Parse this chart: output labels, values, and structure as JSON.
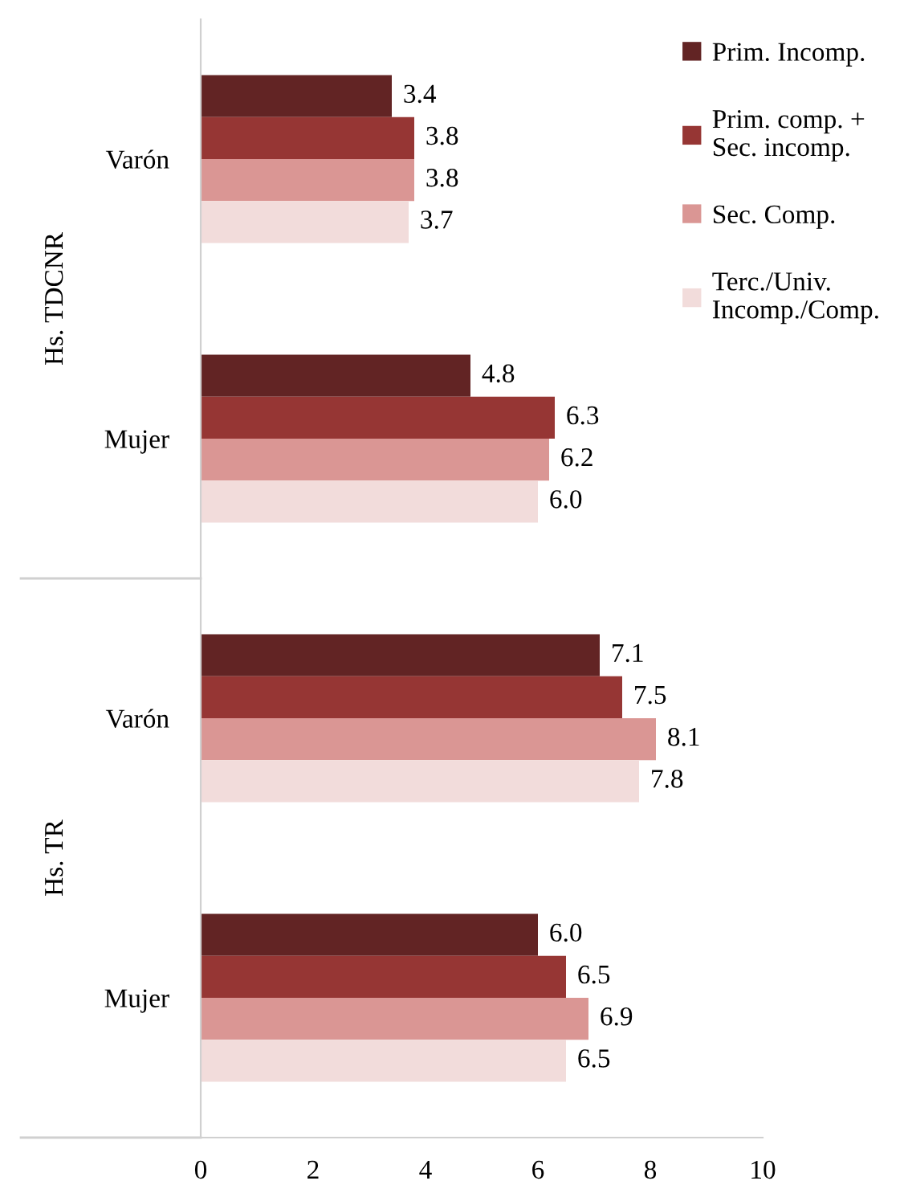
{
  "chart_data": {
    "type": "bar",
    "orientation": "horizontal",
    "categories": [
      "Varón",
      "Mujer",
      "Varón",
      "Mujer"
    ],
    "series": [
      {
        "name": "Prim. Incomp.",
        "color": "#622424",
        "values": [
          3.4,
          4.8,
          7.1,
          6.0
        ],
        "value_labels": [
          "3.4",
          "4.8",
          "7.1",
          "6.0"
        ]
      },
      {
        "name": "Prim. comp. +\nSec. incomp.",
        "color": "#963634",
        "values": [
          3.8,
          6.3,
          7.5,
          6.5
        ],
        "value_labels": [
          "3.8",
          "6.3",
          "7.5",
          "6.5"
        ]
      },
      {
        "name": "Sec. Comp.",
        "color": "#da9694",
        "values": [
          3.8,
          6.2,
          8.1,
          6.9
        ],
        "value_labels": [
          "3.8",
          "6.2",
          "8.1",
          "6.9"
        ]
      },
      {
        "name": "Terc./Univ.\nIncomp./Comp.",
        "color": "#f2dcdb",
        "values": [
          3.7,
          6.0,
          7.8,
          6.5
        ],
        "value_labels": [
          "3.7",
          "6.0",
          "7.8",
          "6.5"
        ]
      }
    ],
    "annotations": [
      "Hs. TDCNR",
      "Hs. TR"
    ],
    "xlim": [
      0,
      10
    ],
    "xticks": [
      0,
      2,
      4,
      6,
      8,
      10
    ],
    "legend": "top right",
    "grid": false
  }
}
